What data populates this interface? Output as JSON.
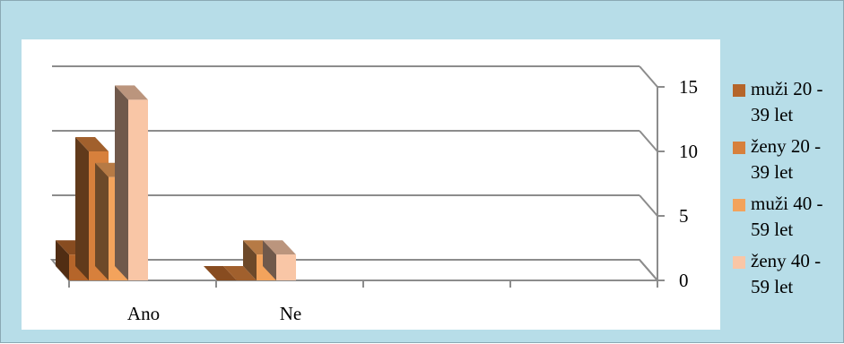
{
  "chart_data": {
    "type": "bar",
    "categories": [
      "Ano",
      "Ne"
    ],
    "series": [
      {
        "name": "muži 20 - 39 let",
        "values": [
          2,
          0
        ]
      },
      {
        "name": "ženy 20 - 39 let",
        "values": [
          10,
          0
        ]
      },
      {
        "name": "muži 40 - 59 let",
        "values": [
          8,
          2
        ]
      },
      {
        "name": "ženy 40 - 59 let",
        "values": [
          14,
          2
        ]
      }
    ],
    "colors": [
      "#b5652a",
      "#d7803c",
      "#f3a35c",
      "#f9c6a6"
    ],
    "yticks": [
      0,
      5,
      10,
      15
    ],
    "ylim": [
      0,
      15
    ],
    "axis_side": "right",
    "gridlines": true,
    "legend_position": "right",
    "three_d": true
  }
}
